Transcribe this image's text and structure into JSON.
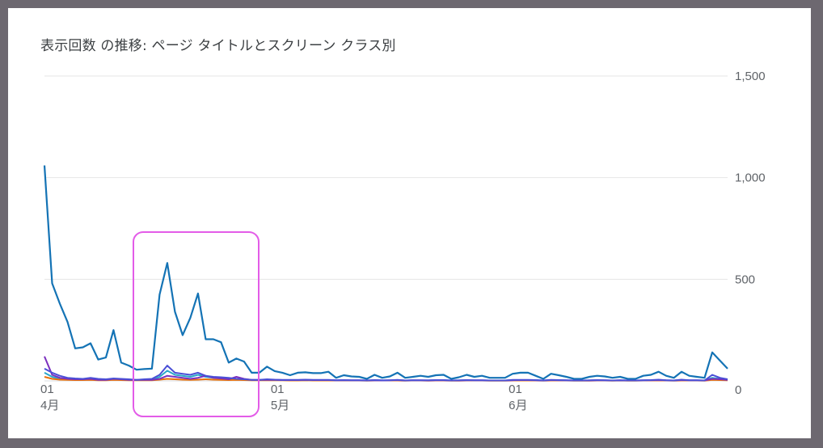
{
  "title": "表示回数 の推移: ページ タイトルとスクリーン クラス別",
  "colors": {
    "primary": "#1473b5",
    "highlight": "#e35ce8",
    "grid": "#e6e6e6"
  },
  "chart_data": {
    "type": "line",
    "ylim": [
      0,
      1500
    ],
    "yticks": [
      "1,500",
      "1,000",
      "500",
      "0"
    ],
    "ytick_values": [
      1500,
      1000,
      500,
      0
    ],
    "xticks": [
      {
        "day": 0,
        "line1": "01",
        "line2": "4月"
      },
      {
        "day": 30,
        "line1": "01",
        "line2": "5月"
      },
      {
        "day": 61,
        "line1": "01",
        "line2": "6月"
      }
    ],
    "grid": true,
    "series": [
      {
        "color": "#1473b5",
        "values": [
          1060,
          480,
          380,
          290,
          160,
          165,
          185,
          105,
          115,
          250,
          90,
          75,
          55,
          58,
          60,
          425,
          580,
          340,
          225,
          310,
          430,
          205,
          205,
          190,
          90,
          110,
          95,
          40,
          40,
          70,
          48,
          40,
          28,
          40,
          42,
          38,
          38,
          45,
          15,
          28,
          22,
          20,
          10,
          30,
          15,
          22,
          40,
          15,
          20,
          25,
          20,
          28,
          30,
          10,
          18,
          30,
          20,
          25,
          15,
          15,
          15,
          35,
          40,
          40,
          25,
          10,
          35,
          28,
          20,
          10,
          10,
          20,
          25,
          22,
          15,
          20,
          10,
          10,
          25,
          30,
          45,
          25,
          15,
          45,
          25,
          20,
          15,
          140,
          100,
          60
        ]
      },
      {
        "color": "#4a4fd6",
        "values": [
          60,
          40,
          25,
          15,
          12,
          10,
          15,
          10,
          8,
          12,
          10,
          8,
          5,
          8,
          10,
          30,
          75,
          40,
          35,
          30,
          40,
          25,
          20,
          18,
          15,
          10,
          8,
          5,
          5,
          8,
          6,
          5,
          5,
          5,
          6,
          5,
          5,
          5,
          3,
          4,
          3,
          3,
          2,
          4,
          3,
          3,
          5,
          2,
          3,
          3,
          3,
          4,
          4,
          2,
          3,
          4,
          3,
          3,
          2,
          2,
          2,
          5,
          5,
          5,
          4,
          2,
          5,
          4,
          3,
          2,
          2,
          3,
          4,
          3,
          2,
          3,
          2,
          2,
          3,
          4,
          6,
          3,
          2,
          6,
          3,
          3,
          2,
          30,
          15,
          8
        ]
      },
      {
        "color": "#7b2fbe",
        "values": [
          120,
          30,
          15,
          10,
          8,
          8,
          10,
          5,
          5,
          10,
          8,
          5,
          5,
          5,
          5,
          10,
          25,
          20,
          15,
          10,
          15,
          25,
          15,
          12,
          8,
          20,
          10,
          5,
          5,
          5,
          5,
          4,
          4,
          4,
          5,
          4,
          4,
          4,
          3,
          3,
          3,
          3,
          2,
          3,
          2,
          3,
          4,
          2,
          3,
          3,
          2,
          3,
          3,
          2,
          2,
          3,
          3,
          3,
          2,
          2,
          2,
          3,
          4,
          4,
          3,
          2,
          4,
          3,
          3,
          2,
          2,
          2,
          3,
          3,
          2,
          3,
          2,
          2,
          3,
          3,
          4,
          3,
          2,
          4,
          3,
          3,
          2,
          10,
          8,
          5
        ]
      },
      {
        "color": "#2aa7c9",
        "values": [
          40,
          20,
          10,
          8,
          6,
          6,
          8,
          5,
          4,
          8,
          6,
          5,
          4,
          5,
          5,
          20,
          50,
          30,
          25,
          20,
          30,
          20,
          15,
          12,
          10,
          8,
          6,
          4,
          4,
          5,
          4,
          4,
          3,
          3,
          4,
          3,
          3,
          3,
          2,
          3,
          2,
          2,
          2,
          3,
          2,
          2,
          3,
          2,
          2,
          2,
          2,
          3,
          3,
          2,
          2,
          3,
          2,
          2,
          2,
          2,
          2,
          3,
          3,
          3,
          3,
          2,
          3,
          3,
          2,
          2,
          2,
          2,
          3,
          2,
          2,
          2,
          2,
          2,
          2,
          3,
          3,
          2,
          2,
          3,
          2,
          2,
          2,
          15,
          10,
          5
        ]
      },
      {
        "color": "#e8710a",
        "values": [
          20,
          10,
          6,
          5,
          4,
          4,
          5,
          3,
          3,
          5,
          4,
          3,
          3,
          3,
          3,
          6,
          10,
          8,
          6,
          5,
          6,
          8,
          6,
          5,
          4,
          5,
          4,
          3,
          3,
          3,
          3,
          3,
          2,
          2,
          3,
          2,
          2,
          2,
          2,
          2,
          2,
          2,
          1,
          2,
          2,
          2,
          2,
          1,
          2,
          2,
          1,
          2,
          2,
          1,
          1,
          2,
          2,
          2,
          1,
          1,
          1,
          2,
          2,
          2,
          2,
          1,
          2,
          2,
          2,
          1,
          1,
          1,
          2,
          2,
          1,
          2,
          1,
          1,
          2,
          2,
          2,
          2,
          1,
          2,
          2,
          2,
          1,
          5,
          4,
          3
        ]
      }
    ]
  }
}
